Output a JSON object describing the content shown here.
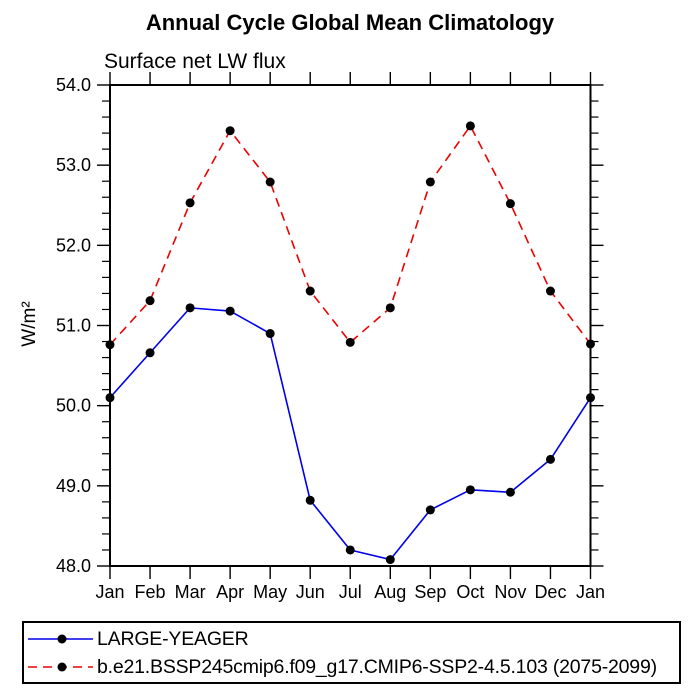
{
  "chart_data": {
    "type": "line",
    "title": "Annual Cycle Global Mean Climatology",
    "subtitle": "Surface net LW flux",
    "ylabel": "W/m²",
    "xlabel": "",
    "x_categories": [
      "Jan",
      "Feb",
      "Mar",
      "Apr",
      "May",
      "Jun",
      "Jul",
      "Aug",
      "Sep",
      "Oct",
      "Nov",
      "Dec",
      "Jan"
    ],
    "ylim": [
      48.0,
      54.0
    ],
    "ytick_step": 1.0,
    "ytick_minor_step": 0.2,
    "ytick_label_format": "one_decimal",
    "grid": false,
    "legend_position": "bottom-left-box",
    "marker": "filled-circle",
    "marker_color": "#000000",
    "series": [
      {
        "name": "LARGE-YEAGER",
        "color": "#0000ee",
        "line_style": "solid",
        "values": [
          50.1,
          50.66,
          51.22,
          51.18,
          50.9,
          48.82,
          48.2,
          48.08,
          48.7,
          48.95,
          48.92,
          49.33,
          50.1
        ]
      },
      {
        "name": "b.e21.BSSP245cmip6.f09_g17.CMIP6-SSP2-4.5.103 (2075-2099)",
        "color": "#ee0000",
        "line_style": "dashed",
        "values": [
          50.76,
          51.31,
          52.53,
          53.43,
          52.79,
          51.43,
          50.79,
          51.22,
          52.79,
          53.49,
          52.52,
          51.43,
          50.77
        ]
      }
    ]
  }
}
